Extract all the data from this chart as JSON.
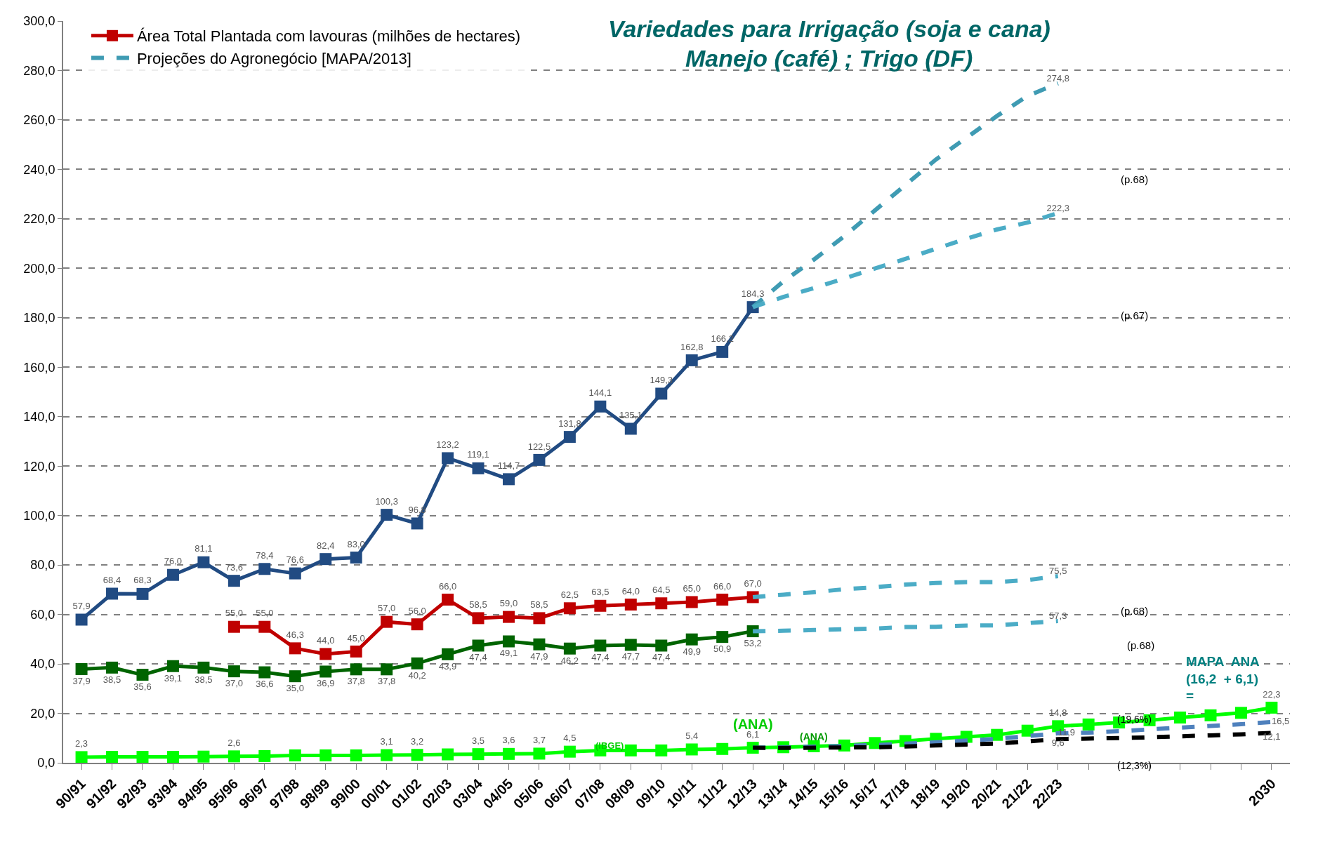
{
  "chart_data": {
    "type": "line",
    "categories": [
      "90/91",
      "91/92",
      "92/93",
      "93/94",
      "94/95",
      "95/96",
      "96/97",
      "97/98",
      "98/99",
      "99/00",
      "00/01",
      "01/02",
      "02/03",
      "03/04",
      "04/05",
      "05/06",
      "06/07",
      "07/08",
      "08/09",
      "09/10",
      "10/11",
      "11/12",
      "12/13",
      "13/14",
      "14/15",
      "15/16",
      "16/17",
      "17/18",
      "18/19",
      "19/20",
      "20/21",
      "21/22",
      "22/23",
      null,
      null,
      null,
      null,
      null,
      null,
      "2030"
    ],
    "ylim": [
      0,
      300
    ],
    "yticks": [
      {
        "value": 0,
        "label": "0,0"
      },
      {
        "value": 20,
        "label": "20,0"
      },
      {
        "value": 40,
        "label": "40,0"
      },
      {
        "value": 60,
        "label": "60,0"
      },
      {
        "value": 80,
        "label": "80,0"
      },
      {
        "value": 100,
        "label": "100,0"
      },
      {
        "value": 120,
        "label": "120,0"
      },
      {
        "value": 140,
        "label": "140,0"
      },
      {
        "value": 160,
        "label": "160,0"
      },
      {
        "value": 180,
        "label": "180,0"
      },
      {
        "value": 200,
        "label": "200,0"
      },
      {
        "value": 220,
        "label": "220,0"
      },
      {
        "value": 240,
        "label": "240,0"
      },
      {
        "value": 260,
        "label": "260,0"
      },
      {
        "value": 280,
        "label": "280,0"
      },
      {
        "value": 300,
        "label": "300,0"
      }
    ],
    "grid": "y",
    "legend": "top left",
    "series": [
      {
        "color": "#214b82",
        "marker": "square",
        "line_style": "solid",
        "values": [
          57.9,
          68.4,
          68.3,
          76.0,
          81.1,
          73.6,
          78.4,
          76.6,
          82.4,
          83.0,
          100.3,
          96.8,
          123.2,
          119.1,
          114.7,
          122.5,
          131.8,
          144.1,
          135.1,
          149.3,
          162.8,
          166.2,
          184.3,
          null,
          null,
          null,
          null,
          null,
          null,
          null,
          null,
          null,
          null,
          null,
          null,
          null,
          null,
          null,
          null,
          null
        ],
        "value_labels": [
          "57,9",
          "68,4",
          "68,3",
          "76,0",
          "81,1",
          "73,6",
          "78,4",
          "76,6",
          "82,4",
          "83,0",
          "100,3",
          "96,8",
          "123,2",
          "119,1",
          "114,7",
          "122,5",
          "131,8",
          "144,1",
          "135,1",
          "149,3",
          "162,8",
          "166,2",
          "184,3",
          null,
          null,
          null,
          null,
          null,
          null,
          null,
          null,
          null,
          null,
          null,
          null,
          null,
          null,
          null,
          null,
          null
        ]
      },
      {
        "name": "Área Total Plantada com lavouras (milhões de hectares)",
        "color": "#c00000",
        "marker": "square",
        "line_style": "solid",
        "values": [
          null,
          null,
          null,
          null,
          null,
          55.0,
          55.0,
          46.3,
          44.0,
          45.0,
          57.0,
          56.0,
          66.0,
          58.5,
          59.0,
          58.5,
          62.5,
          63.5,
          64.0,
          64.5,
          65.0,
          66.0,
          67.0,
          null,
          null,
          null,
          null,
          null,
          null,
          null,
          null,
          null,
          null,
          null,
          null,
          null,
          null,
          null,
          null,
          null
        ],
        "value_labels": [
          null,
          null,
          null,
          null,
          null,
          "55,0",
          "55,0",
          "46,3",
          "44,0",
          "45,0",
          "57,0",
          "56,0",
          "66,0",
          "58,5",
          "59,0",
          "58,5",
          "62,5",
          "63,5",
          "64,0",
          "64,5",
          "65,0",
          "66,0",
          "67,0",
          null,
          null,
          null,
          null,
          null,
          null,
          null,
          null,
          null,
          null,
          null,
          null,
          null,
          null,
          null,
          null,
          null
        ]
      },
      {
        "color": "#006400",
        "marker": "square",
        "line_style": "solid",
        "values": [
          37.9,
          38.5,
          35.6,
          39.1,
          38.5,
          37.0,
          36.6,
          35.0,
          36.9,
          37.8,
          37.8,
          40.2,
          43.9,
          47.4,
          49.1,
          47.9,
          46.2,
          47.4,
          47.7,
          47.4,
          49.9,
          50.9,
          53.2,
          null,
          null,
          null,
          null,
          null,
          null,
          null,
          null,
          null,
          null,
          null,
          null,
          null,
          null,
          null,
          null,
          null
        ],
        "value_labels": [
          "37,9",
          "38,5",
          "35,6",
          "39,1",
          "38,5",
          "37,0",
          "36,6",
          "35,0",
          "36,9",
          "37,8",
          "37,8",
          "40,2",
          "43,9",
          "47,4",
          "49,1",
          "47,9",
          "46,2",
          "47,4",
          "47,7",
          "47,4",
          "49,9",
          "50,9",
          "53,2",
          null,
          null,
          null,
          null,
          null,
          null,
          null,
          null,
          null,
          null,
          null,
          null,
          null,
          null,
          null,
          null,
          null
        ]
      },
      {
        "name": "Projeções do Agronegócio [MAPA/2013]",
        "color": "#3f9bb3",
        "marker": "none",
        "line_style": "dashed",
        "values": [
          null,
          null,
          null,
          null,
          null,
          null,
          null,
          null,
          null,
          null,
          null,
          null,
          null,
          null,
          null,
          null,
          null,
          null,
          null,
          null,
          null,
          null,
          184.3,
          194.7,
          203.5,
          213.0,
          223.4,
          233.7,
          244.0,
          252.8,
          261.6,
          269.7,
          274.8,
          null,
          null,
          null,
          null,
          null,
          null,
          null
        ],
        "value_labels": [
          null,
          null,
          null,
          null,
          null,
          null,
          null,
          null,
          null,
          null,
          null,
          null,
          null,
          null,
          null,
          null,
          null,
          null,
          null,
          null,
          null,
          null,
          null,
          null,
          null,
          null,
          null,
          null,
          null,
          null,
          null,
          null,
          "274,8",
          null,
          null,
          null,
          null,
          null,
          null,
          null
        ]
      },
      {
        "color": "#4bacc6",
        "marker": "none",
        "line_style": "dashed",
        "values": [
          null,
          null,
          null,
          null,
          null,
          null,
          null,
          null,
          null,
          null,
          null,
          null,
          null,
          null,
          null,
          null,
          null,
          null,
          null,
          null,
          null,
          null,
          184.3,
          188.4,
          192.0,
          195.9,
          199.9,
          203.8,
          207.9,
          212.0,
          215.7,
          218.5,
          222.3,
          null,
          null,
          null,
          null,
          null,
          null,
          null
        ],
        "value_labels": [
          null,
          null,
          null,
          null,
          null,
          null,
          null,
          null,
          null,
          null,
          null,
          null,
          null,
          null,
          null,
          null,
          null,
          null,
          null,
          null,
          null,
          null,
          null,
          null,
          null,
          null,
          null,
          null,
          null,
          null,
          null,
          null,
          "222,3",
          null,
          null,
          null,
          null,
          null,
          null,
          null
        ]
      },
      {
        "color": "#4bacc6",
        "marker": "none",
        "line_style": "dashed",
        "values": [
          null,
          null,
          null,
          null,
          null,
          null,
          null,
          null,
          null,
          null,
          null,
          null,
          null,
          null,
          null,
          null,
          null,
          null,
          null,
          null,
          null,
          null,
          67.0,
          68.0,
          69.0,
          70.2,
          71.0,
          72.1,
          72.7,
          73.1,
          73.1,
          73.9,
          75.5,
          null,
          null,
          null,
          null,
          null,
          null,
          null
        ],
        "value_labels": [
          null,
          null,
          null,
          null,
          null,
          null,
          null,
          null,
          null,
          null,
          null,
          null,
          null,
          null,
          null,
          null,
          null,
          null,
          null,
          null,
          null,
          null,
          null,
          null,
          null,
          null,
          null,
          null,
          null,
          null,
          null,
          null,
          "75,5",
          null,
          null,
          null,
          null,
          null,
          null,
          null
        ]
      },
      {
        "color": "#4bacc6",
        "marker": "none",
        "line_style": "dashed",
        "values": [
          null,
          null,
          null,
          null,
          null,
          null,
          null,
          null,
          null,
          null,
          null,
          null,
          null,
          null,
          null,
          null,
          null,
          null,
          null,
          null,
          null,
          null,
          53.2,
          53.4,
          53.7,
          54.0,
          54.3,
          54.9,
          55.0,
          55.5,
          55.6,
          56.5,
          57.3,
          null,
          null,
          null,
          null,
          null,
          null,
          null
        ],
        "value_labels": [
          null,
          null,
          null,
          null,
          null,
          null,
          null,
          null,
          null,
          null,
          null,
          null,
          null,
          null,
          null,
          null,
          null,
          null,
          null,
          null,
          null,
          null,
          null,
          null,
          null,
          null,
          null,
          null,
          null,
          null,
          null,
          null,
          "57,3",
          null,
          null,
          null,
          null,
          null,
          null,
          null
        ]
      },
      {
        "color": "#4f81bd",
        "marker": "none",
        "line_style": "dashed",
        "values": [
          null,
          null,
          null,
          null,
          null,
          null,
          null,
          null,
          null,
          null,
          null,
          null,
          null,
          null,
          null,
          null,
          null,
          null,
          null,
          null,
          null,
          null,
          6.1,
          6.3,
          6.5,
          6.8,
          7.2,
          7.7,
          8.3,
          9.0,
          9.7,
          10.8,
          11.9,
          12.2,
          12.8,
          13.5,
          14.2,
          14.9,
          15.6,
          16.5
        ],
        "value_labels": [
          null,
          null,
          null,
          null,
          null,
          null,
          null,
          null,
          null,
          null,
          null,
          null,
          null,
          null,
          null,
          null,
          null,
          null,
          null,
          null,
          null,
          null,
          null,
          null,
          null,
          null,
          null,
          null,
          null,
          null,
          null,
          null,
          "11,9",
          null,
          null,
          null,
          null,
          null,
          null,
          "16,5"
        ]
      },
      {
        "color": "#000000",
        "marker": "none",
        "line_style": "dashed",
        "values": [
          null,
          null,
          null,
          null,
          null,
          null,
          null,
          null,
          null,
          null,
          null,
          null,
          null,
          null,
          null,
          null,
          null,
          null,
          null,
          null,
          null,
          null,
          6.1,
          6.0,
          6.1,
          6.2,
          6.3,
          6.6,
          7.0,
          7.4,
          7.8,
          8.6,
          9.6,
          9.8,
          10.0,
          10.3,
          10.7,
          11.1,
          11.5,
          12.1
        ],
        "value_labels": [
          null,
          null,
          null,
          null,
          null,
          null,
          null,
          null,
          null,
          null,
          null,
          null,
          null,
          null,
          null,
          null,
          null,
          null,
          null,
          null,
          null,
          null,
          null,
          null,
          null,
          null,
          null,
          null,
          null,
          null,
          null,
          null,
          "9,6",
          null,
          null,
          null,
          null,
          null,
          null,
          "12,1"
        ]
      },
      {
        "color": "#00ff00",
        "marker": "square",
        "line_style": "solid",
        "values": [
          2.3,
          2.4,
          2.4,
          2.4,
          2.5,
          2.6,
          2.7,
          3.0,
          3.0,
          3.0,
          3.1,
          3.2,
          3.4,
          3.5,
          3.6,
          3.7,
          4.5,
          5.0,
          5.0,
          5.0,
          5.4,
          5.6,
          6.1,
          6.3,
          6.7,
          7.0,
          8.0,
          8.8,
          9.7,
          10.5,
          11.3,
          13.0,
          14.8,
          15.5,
          16.3,
          17.2,
          18.3,
          19.2,
          20.2,
          22.3
        ],
        "value_labels": [
          "2,3",
          null,
          null,
          null,
          null,
          "2,6",
          null,
          null,
          null,
          null,
          "3,1",
          "3,2",
          null,
          "3,5",
          "3,6",
          "3,7",
          "4,5",
          null,
          null,
          null,
          "5,4",
          null,
          "6,1",
          null,
          null,
          null,
          null,
          null,
          null,
          null,
          null,
          null,
          "14,8",
          null,
          null,
          null,
          null,
          null,
          null,
          "22,3"
        ]
      }
    ],
    "annotations": [
      "Variedades para Irrigação (soja e cana)",
      "Manejo (café) ; Trigo (DF)",
      "(p.68)",
      "(p.67)",
      "(p.68)",
      "(p.68)",
      "MAPA  ANA\n(16,2  + 6,1)\n=",
      "(ANA)",
      "(ANA)",
      "(IBGE)",
      "(19,6%)",
      "(12,3%)"
    ]
  }
}
